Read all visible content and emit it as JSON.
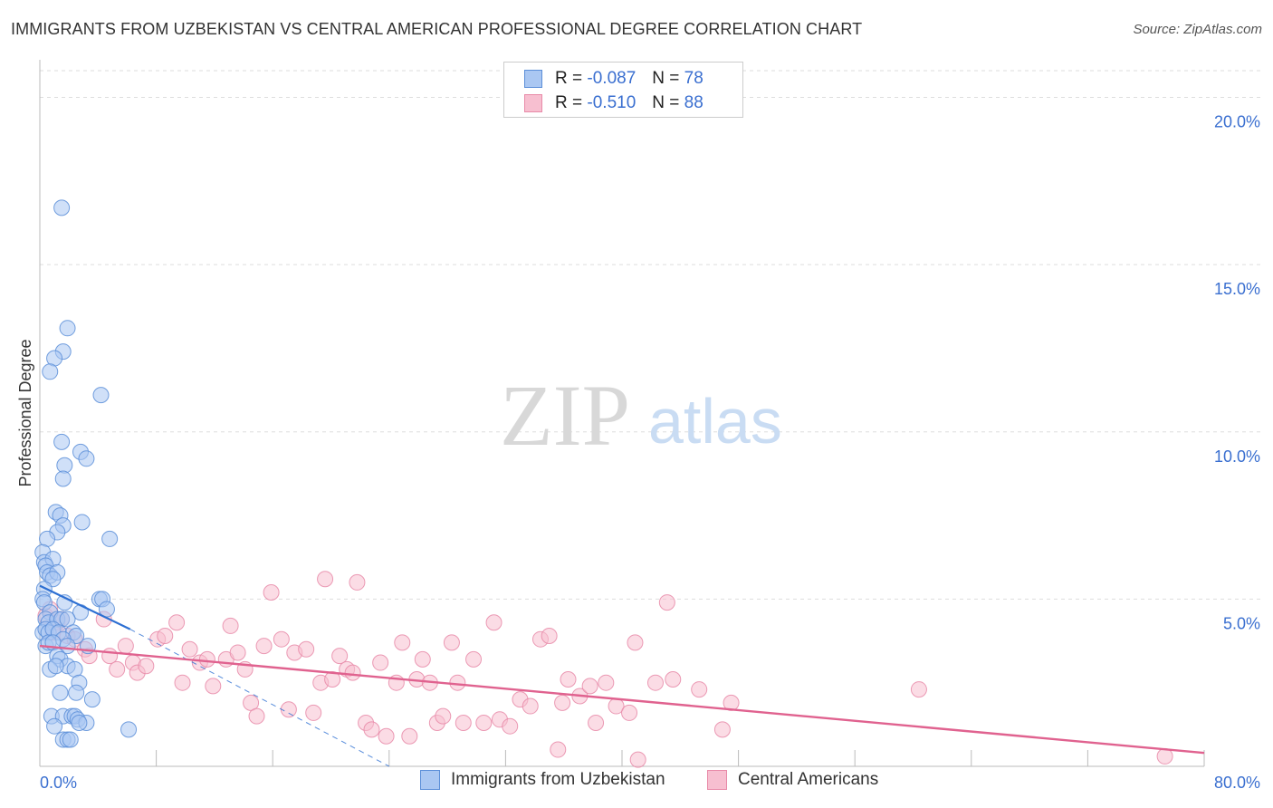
{
  "header": {
    "title": "IMMIGRANTS FROM UZBEKISTAN VS CENTRAL AMERICAN PROFESSIONAL DEGREE CORRELATION CHART",
    "source": "Source: ZipAtlas.com"
  },
  "watermark": {
    "zip": "ZIP",
    "atlas": "atlas"
  },
  "legend": {
    "r_label": "R =",
    "n_label": "N =",
    "series": [
      {
        "r": "-0.087",
        "n": "78"
      },
      {
        "r": "-0.510",
        "n": "88"
      }
    ]
  },
  "colors": {
    "blue_fill": "#aac7f2",
    "blue_stroke": "#5b8ed8",
    "blue_line": "#2d6fd2",
    "pink_fill": "#f7bfd0",
    "pink_stroke": "#e88aa8",
    "pink_line": "#e0628f",
    "tick_text": "#3a6fd0",
    "grid": "#dddddd"
  },
  "chart_data": {
    "type": "scatter",
    "title": "IMMIGRANTS FROM UZBEKISTAN VS CENTRAL AMERICAN PROFESSIONAL DEGREE CORRELATION CHART",
    "xlabel": "",
    "ylabel": "Professional Degree",
    "xlim": [
      0,
      80
    ],
    "ylim": [
      0,
      20.8
    ],
    "x_tick_labels": [
      "0.0%",
      "80.0%"
    ],
    "y_ticks": [
      5,
      10,
      15,
      20
    ],
    "y_tick_labels": [
      "5.0%",
      "10.0%",
      "15.0%",
      "20.0%"
    ],
    "grid": true,
    "series": [
      {
        "name": "Immigrants from Uzbekistan",
        "trend": {
          "x0": 0,
          "y0": 5.4,
          "x1": 6.2,
          "y1": 4.1
        },
        "trend_dashed": {
          "x0": 6.2,
          "y0": 4.1,
          "x1": 24.0,
          "y1": 0.0
        },
        "points": [
          [
            1.5,
            16.7
          ],
          [
            1.9,
            13.1
          ],
          [
            1.6,
            12.4
          ],
          [
            1.0,
            12.2
          ],
          [
            0.7,
            11.8
          ],
          [
            4.2,
            11.1
          ],
          [
            1.5,
            9.7
          ],
          [
            2.8,
            9.4
          ],
          [
            3.2,
            9.2
          ],
          [
            1.7,
            9.0
          ],
          [
            1.6,
            8.6
          ],
          [
            1.1,
            7.6
          ],
          [
            1.4,
            7.5
          ],
          [
            1.6,
            7.2
          ],
          [
            2.9,
            7.3
          ],
          [
            1.2,
            7.0
          ],
          [
            0.5,
            6.8
          ],
          [
            4.8,
            6.8
          ],
          [
            0.2,
            6.4
          ],
          [
            0.3,
            6.1
          ],
          [
            0.9,
            6.2
          ],
          [
            0.4,
            6.0
          ],
          [
            0.5,
            5.8
          ],
          [
            0.7,
            5.7
          ],
          [
            1.2,
            5.8
          ],
          [
            0.9,
            5.6
          ],
          [
            0.3,
            5.3
          ],
          [
            0.2,
            5.0
          ],
          [
            0.3,
            4.9
          ],
          [
            1.7,
            4.9
          ],
          [
            4.1,
            5.0
          ],
          [
            4.3,
            5.0
          ],
          [
            4.6,
            4.7
          ],
          [
            0.7,
            4.6
          ],
          [
            2.8,
            4.6
          ],
          [
            0.4,
            4.4
          ],
          [
            0.6,
            4.3
          ],
          [
            1.2,
            4.4
          ],
          [
            1.5,
            4.4
          ],
          [
            1.9,
            4.4
          ],
          [
            0.2,
            4.0
          ],
          [
            0.4,
            4.1
          ],
          [
            0.6,
            4.0
          ],
          [
            0.9,
            4.1
          ],
          [
            1.3,
            4.0
          ],
          [
            2.3,
            4.0
          ],
          [
            2.5,
            3.9
          ],
          [
            1.6,
            3.8
          ],
          [
            0.4,
            3.6
          ],
          [
            0.6,
            3.7
          ],
          [
            0.9,
            3.7
          ],
          [
            1.9,
            3.6
          ],
          [
            3.3,
            3.6
          ],
          [
            1.2,
            3.3
          ],
          [
            1.4,
            3.2
          ],
          [
            1.9,
            3.0
          ],
          [
            0.7,
            2.9
          ],
          [
            1.1,
            3.0
          ],
          [
            2.4,
            2.9
          ],
          [
            2.7,
            2.5
          ],
          [
            1.4,
            2.2
          ],
          [
            2.5,
            2.2
          ],
          [
            3.6,
            2.0
          ],
          [
            0.8,
            1.5
          ],
          [
            1.6,
            1.5
          ],
          [
            2.2,
            1.5
          ],
          [
            2.4,
            1.5
          ],
          [
            2.6,
            1.4
          ],
          [
            3.2,
            1.3
          ],
          [
            1.0,
            1.2
          ],
          [
            2.7,
            1.3
          ],
          [
            6.1,
            1.1
          ],
          [
            1.6,
            0.8
          ],
          [
            1.9,
            0.8
          ],
          [
            2.1,
            0.8
          ]
        ]
      },
      {
        "name": "Central Americans",
        "trend": {
          "x0": 0,
          "y0": 3.6,
          "x1": 80,
          "y1": 0.4
        },
        "points": [
          [
            0.4,
            4.5
          ],
          [
            0.7,
            4.7
          ],
          [
            1.2,
            4.3
          ],
          [
            1.5,
            4.4
          ],
          [
            0.9,
            4.0
          ],
          [
            1.9,
            3.9
          ],
          [
            2.4,
            3.8
          ],
          [
            3.1,
            3.5
          ],
          [
            3.4,
            3.3
          ],
          [
            4.4,
            4.4
          ],
          [
            4.8,
            3.3
          ],
          [
            5.3,
            2.9
          ],
          [
            5.9,
            3.6
          ],
          [
            6.4,
            3.1
          ],
          [
            6.7,
            2.8
          ],
          [
            7.3,
            3.0
          ],
          [
            8.1,
            3.8
          ],
          [
            8.6,
            3.9
          ],
          [
            9.4,
            4.3
          ],
          [
            9.8,
            2.5
          ],
          [
            10.3,
            3.5
          ],
          [
            11.0,
            3.1
          ],
          [
            11.5,
            3.2
          ],
          [
            11.9,
            2.4
          ],
          [
            12.8,
            3.2
          ],
          [
            13.1,
            4.2
          ],
          [
            13.6,
            3.4
          ],
          [
            14.1,
            2.9
          ],
          [
            14.5,
            1.9
          ],
          [
            14.9,
            1.5
          ],
          [
            15.4,
            3.6
          ],
          [
            15.9,
            5.2
          ],
          [
            16.6,
            3.8
          ],
          [
            17.1,
            1.7
          ],
          [
            17.5,
            3.4
          ],
          [
            18.3,
            3.5
          ],
          [
            18.8,
            1.6
          ],
          [
            19.3,
            2.5
          ],
          [
            19.6,
            5.6
          ],
          [
            20.1,
            2.6
          ],
          [
            20.6,
            3.3
          ],
          [
            21.1,
            2.9
          ],
          [
            21.5,
            2.8
          ],
          [
            21.8,
            5.5
          ],
          [
            22.4,
            1.3
          ],
          [
            22.8,
            1.1
          ],
          [
            23.4,
            3.1
          ],
          [
            23.8,
            0.9
          ],
          [
            24.5,
            2.5
          ],
          [
            24.9,
            3.7
          ],
          [
            25.4,
            0.9
          ],
          [
            25.9,
            2.6
          ],
          [
            26.3,
            3.2
          ],
          [
            26.8,
            2.5
          ],
          [
            27.3,
            1.3
          ],
          [
            27.7,
            1.5
          ],
          [
            28.3,
            3.7
          ],
          [
            28.7,
            2.5
          ],
          [
            29.1,
            1.3
          ],
          [
            29.8,
            3.2
          ],
          [
            30.5,
            1.3
          ],
          [
            31.2,
            4.3
          ],
          [
            31.6,
            1.4
          ],
          [
            32.3,
            1.2
          ],
          [
            33.0,
            2.0
          ],
          [
            33.7,
            1.8
          ],
          [
            34.4,
            3.8
          ],
          [
            35.0,
            3.9
          ],
          [
            35.6,
            0.5
          ],
          [
            35.9,
            1.9
          ],
          [
            36.3,
            2.6
          ],
          [
            37.1,
            2.1
          ],
          [
            37.8,
            2.4
          ],
          [
            38.2,
            1.3
          ],
          [
            38.9,
            2.5
          ],
          [
            39.6,
            1.8
          ],
          [
            40.5,
            1.6
          ],
          [
            40.9,
            3.7
          ],
          [
            41.1,
            0.2
          ],
          [
            42.3,
            2.5
          ],
          [
            43.1,
            4.9
          ],
          [
            43.5,
            2.6
          ],
          [
            45.3,
            2.3
          ],
          [
            47.5,
            1.9
          ],
          [
            46.9,
            1.1
          ],
          [
            60.4,
            2.3
          ],
          [
            77.3,
            0.3
          ]
        ]
      }
    ]
  }
}
